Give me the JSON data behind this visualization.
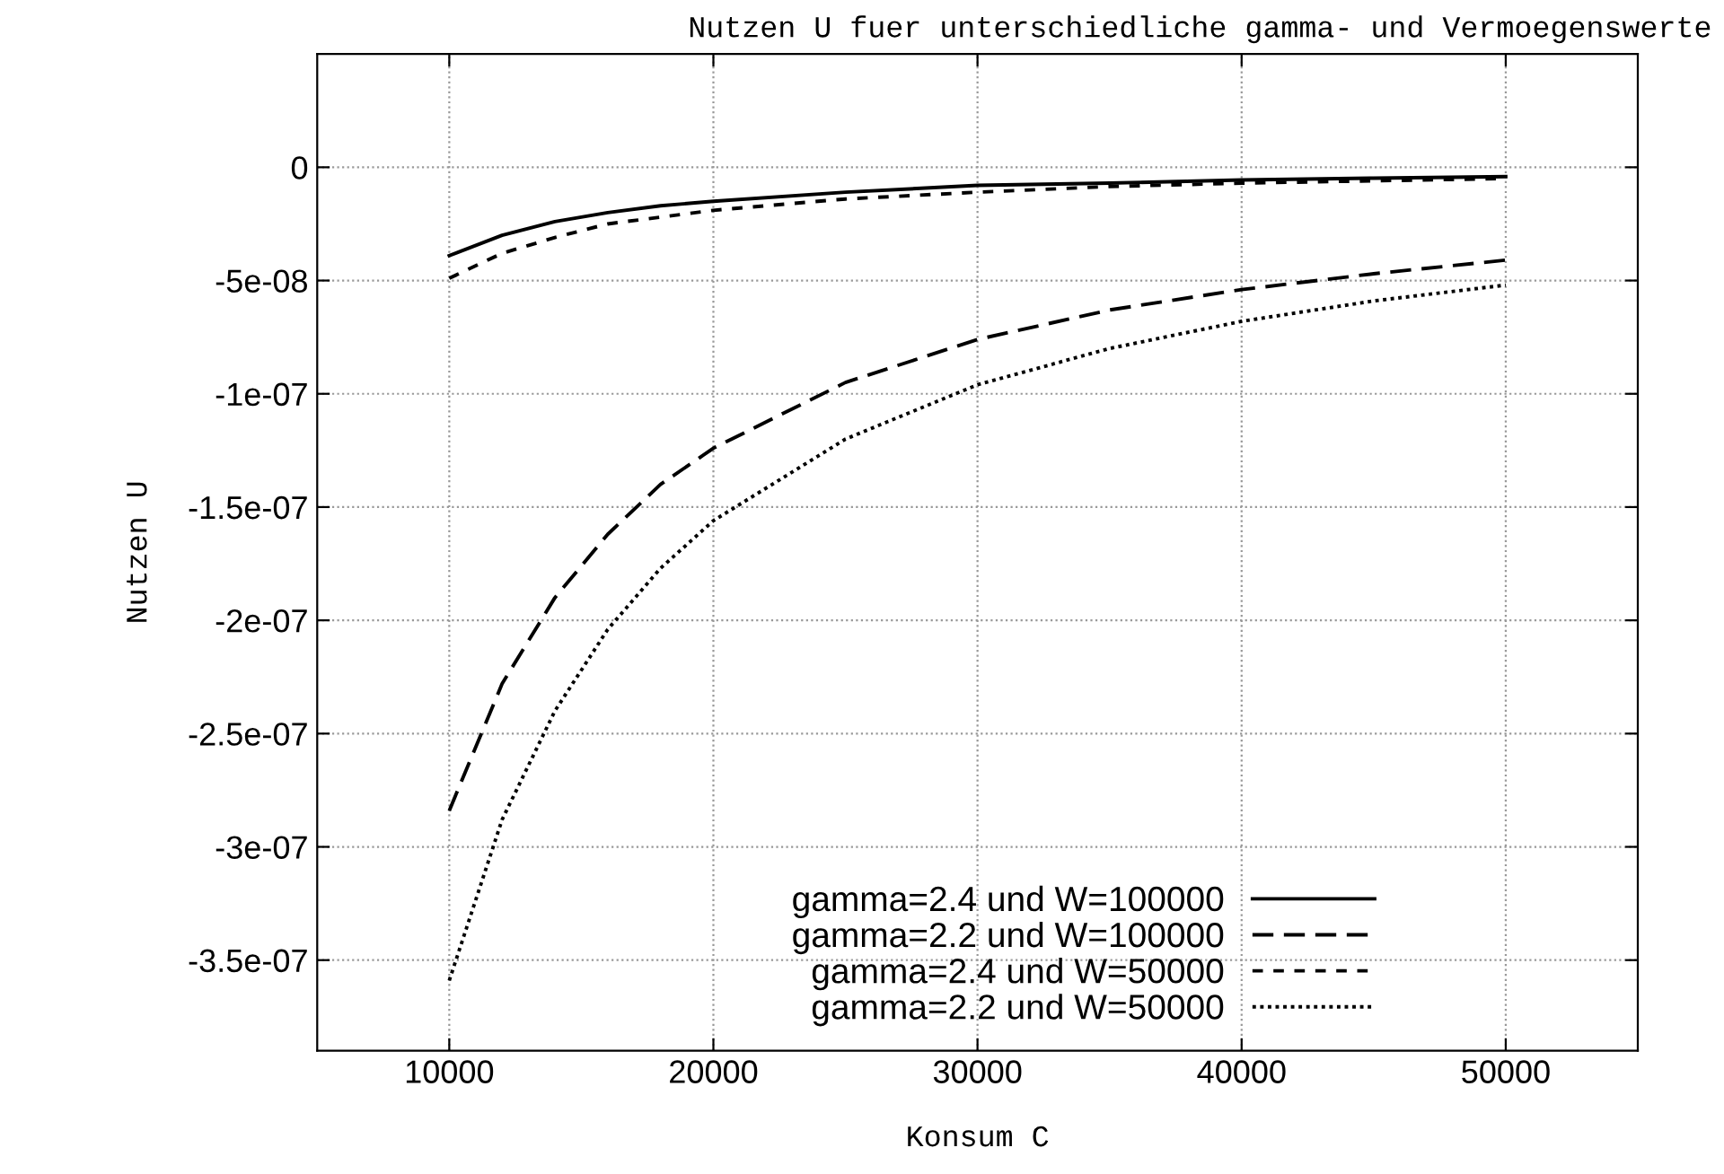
{
  "chart_data": {
    "type": "line",
    "title": "Nutzen U fuer unterschiedliche gamma- und Vermoegenswerte",
    "xlabel": "Konsum C",
    "ylabel": "Nutzen U",
    "x": [
      10000,
      12000,
      14000,
      16000,
      18000,
      20000,
      25000,
      30000,
      35000,
      40000,
      45000,
      50000
    ],
    "series": [
      {
        "name": "gamma=2.4 und W=100000",
        "color": "#000000",
        "line_style": "solid",
        "values": [
          -3.9e-08,
          -3e-08,
          -2.4e-08,
          -2e-08,
          -1.7e-08,
          -1.5e-08,
          -1.1e-08,
          -8e-09,
          -7e-09,
          -5.6e-09,
          -4.8e-09,
          -4.1e-09
        ]
      },
      {
        "name": "gamma=2.2 und W=100000",
        "color": "#000000",
        "line_style": "dashed",
        "values": [
          -2.84e-07,
          -2.28e-07,
          -1.9e-07,
          -1.62e-07,
          -1.4e-07,
          -1.24e-07,
          -9.5e-08,
          -7.6e-08,
          -6.3e-08,
          -5.4e-08,
          -4.7e-08,
          -4.1e-08
        ]
      },
      {
        "name": "gamma=2.4 und W=50000",
        "color": "#000000",
        "line_style": "dashed",
        "values": [
          -4.9e-08,
          -3.8e-08,
          -3.1e-08,
          -2.5e-08,
          -2.2e-08,
          -1.9e-08,
          -1.4e-08,
          -1.1e-08,
          -8.5e-09,
          -7e-09,
          -6e-09,
          -5e-09
        ]
      },
      {
        "name": "gamma=2.2 und W=50000",
        "color": "#000000",
        "line_style": "dotted",
        "values": [
          -3.59e-07,
          -2.88e-07,
          -2.4e-07,
          -2.04e-07,
          -1.77e-07,
          -1.56e-07,
          -1.2e-07,
          -9.6e-08,
          -8e-08,
          -6.8e-08,
          -5.9e-08,
          -5.2e-08
        ]
      }
    ],
    "xlim": [
      5000,
      55000
    ],
    "xticks": [
      10000,
      20000,
      30000,
      40000,
      50000
    ],
    "ylim": [
      -3.9e-07,
      5e-08
    ],
    "yticks": [
      0,
      {
        "value": -5e-08,
        "label": "-5e-08"
      },
      {
        "value": -1e-07,
        "label": "-1e-07"
      },
      {
        "value": -1.5e-07,
        "label": "-1.5e-07"
      },
      {
        "value": -2e-07,
        "label": "-2e-07"
      },
      {
        "value": -2.5e-07,
        "label": "-2.5e-07"
      },
      {
        "value": -3e-07,
        "label": "-3e-07"
      },
      {
        "value": -3.5e-07,
        "label": "-3.5e-07"
      }
    ],
    "grid": true,
    "legend": "bottom"
  }
}
